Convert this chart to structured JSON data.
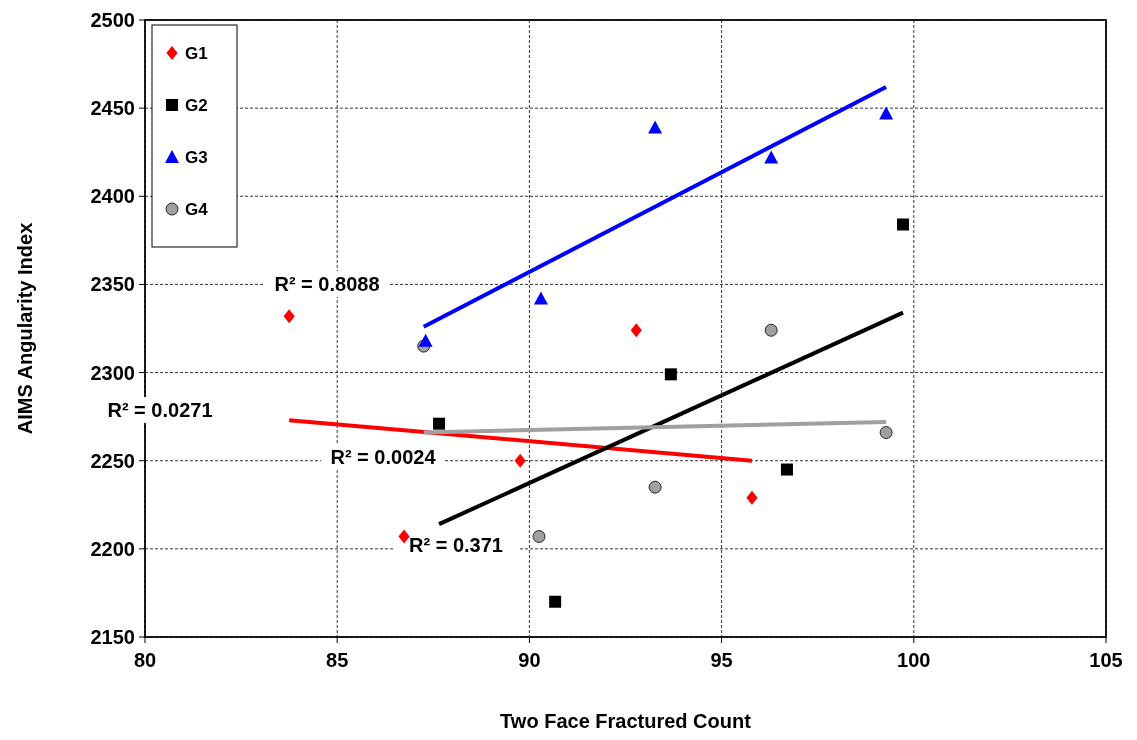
{
  "chart_data": {
    "type": "scatter",
    "xlabel": "Two Face Fractured Count",
    "ylabel": "AIMS Angularity Index",
    "xlim": [
      80,
      105
    ],
    "xticks": [
      80,
      85,
      90,
      95,
      100,
      105
    ],
    "ylim": [
      2150,
      2500
    ],
    "yticks": [
      2150,
      2200,
      2250,
      2300,
      2350,
      2400,
      2450,
      2500
    ],
    "grid": true,
    "legend": "top left",
    "series": [
      {
        "name": "G1",
        "color": "#ff0000",
        "marker": "diamond",
        "x": [
          83.75,
          86.74,
          89.76,
          92.78,
          95.79
        ],
        "values": [
          2332,
          2207,
          2250,
          2324,
          2229
        ]
      },
      {
        "name": "G2",
        "color": "#000000",
        "marker": "square",
        "x": [
          87.65,
          90.67,
          93.68,
          96.7,
          99.72
        ],
        "values": [
          2271,
          2170,
          2299,
          2245,
          2384
        ]
      },
      {
        "name": "G3",
        "color": "#0000ff",
        "marker": "triangle",
        "x": [
          87.3,
          90.3,
          93.27,
          96.29,
          99.28
        ],
        "values": [
          2318,
          2342,
          2439,
          2422,
          2447
        ]
      },
      {
        "name": "G4",
        "color": "#a0a0a0",
        "marker": "circle",
        "x": [
          87.25,
          90.25,
          93.27,
          96.29,
          99.28
        ],
        "values": [
          2315,
          2207,
          2235,
          2324,
          2266
        ]
      },
      {
        "type": "line",
        "color": "#ff0000",
        "x": [
          83.75,
          95.79
        ],
        "values": [
          2273,
          2250
        ]
      },
      {
        "type": "line",
        "color": "#000000",
        "x": [
          87.65,
          99.72
        ],
        "values": [
          2214,
          2334
        ]
      },
      {
        "type": "line",
        "color": "#0000ff",
        "x": [
          87.25,
          99.28
        ],
        "values": [
          2326,
          2462
        ]
      },
      {
        "type": "line",
        "color": "#a0a0a0",
        "x": [
          87.25,
          99.28
        ],
        "values": [
          2266,
          2272
        ]
      }
    ],
    "annotations": [
      "R² = 0.8088",
      "R² = 0.0271",
      "R² = 0.0024",
      "R² = 0.371"
    ]
  }
}
